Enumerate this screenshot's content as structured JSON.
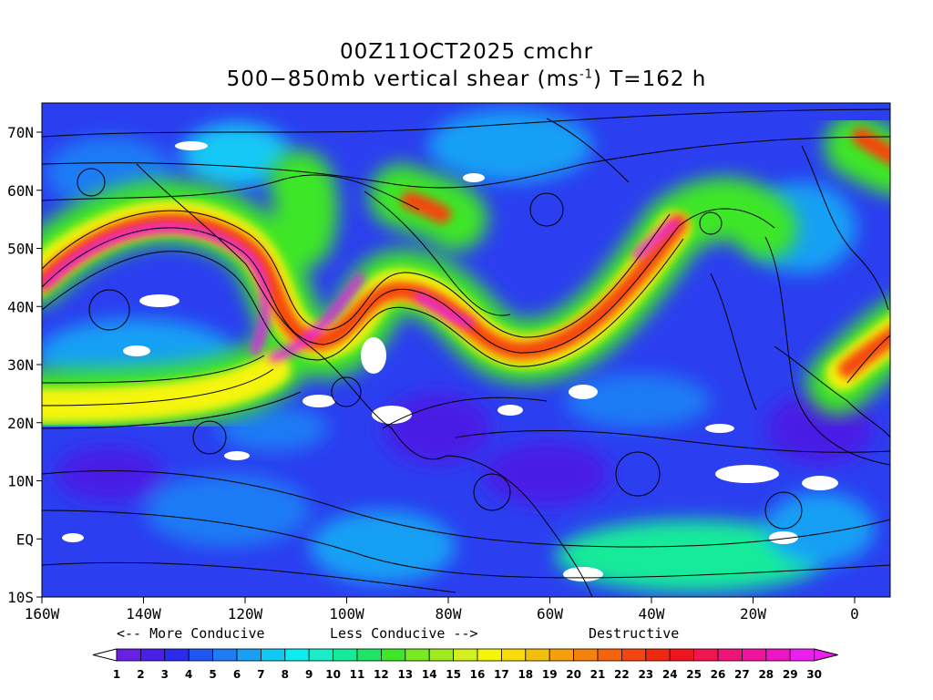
{
  "title_line1": "00Z11OCT2025 cmchr",
  "title_line2_prefix": "500−850mb vertical shear (ms",
  "title_line2_sup": "-1",
  "title_line2_suffix": ") T=162 h",
  "lon_labels": [
    "160W",
    "140W",
    "120W",
    "100W",
    "80W",
    "60W",
    "40W",
    "20W",
    "0"
  ],
  "lat_labels": [
    "70N",
    "60N",
    "50N",
    "40N",
    "30N",
    "20N",
    "10N",
    "EQ",
    "10S"
  ],
  "legend_hints": {
    "more": "<-- More Conducive",
    "less": "Less Conducive -->",
    "destructive": "Destructive"
  },
  "colorbar": {
    "labels": [
      "1",
      "2",
      "3",
      "4",
      "5",
      "6",
      "7",
      "8",
      "9",
      "10",
      "11",
      "12",
      "13",
      "14",
      "15",
      "16",
      "17",
      "18",
      "19",
      "20",
      "21",
      "22",
      "23",
      "24",
      "25",
      "26",
      "27",
      "28",
      "29",
      "30"
    ],
    "colors": [
      "#ffffff",
      "#6a1fe6",
      "#4a1fe6",
      "#2b2bf0",
      "#1f55f0",
      "#1e7cf5",
      "#19a0f5",
      "#12c8f5",
      "#0aecee",
      "#19edc8",
      "#14eb9a",
      "#1ee664",
      "#3ce628",
      "#78ea1e",
      "#a0eb1e",
      "#d2f01e",
      "#f5f50a",
      "#fadc0a",
      "#f5be0a",
      "#f5a00a",
      "#f5820a",
      "#f5640a",
      "#f5460f",
      "#f0280f",
      "#f0141e",
      "#f01450",
      "#f01478",
      "#f014a0",
      "#ee14c8",
      "#ea1eee"
    ]
  },
  "colors": {
    "land_outline": "#000000",
    "streamline": "#000000",
    "background": "#ffffff"
  }
}
